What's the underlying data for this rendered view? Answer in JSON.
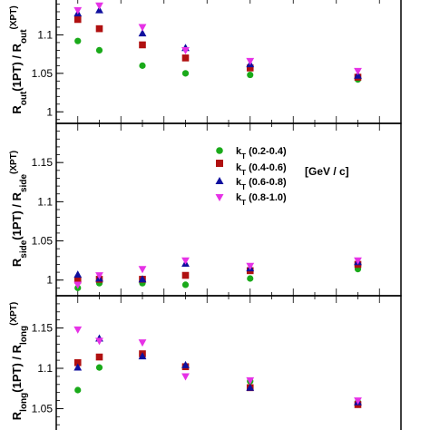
{
  "chart_data": {
    "type": "scatter",
    "x": [
      0.2,
      0.25,
      0.35,
      0.45,
      0.6,
      0.85
    ],
    "legend": {
      "placement": "middle panel, center-right",
      "unit_label": "[GeV / c]"
    },
    "series_style": [
      {
        "color": "#1aaa1a",
        "marker": "circle"
      },
      {
        "color": "#b01010",
        "marker": "square"
      },
      {
        "color": "#10109e",
        "marker": "triangle-up"
      },
      {
        "color": "#e632e6",
        "marker": "triangle-down"
      }
    ],
    "panels": [
      {
        "name": "out",
        "ylabel": "R_out(1PT) / R_out(XPT)",
        "ylim": [
          0.985,
          1.15
        ],
        "yticks": [
          {
            "value": 1,
            "label": "1"
          },
          {
            "value": 1.05,
            "label": "1.05"
          },
          {
            "value": 1.1,
            "label": "1.1"
          },
          {
            "value": 1.15,
            "label": "1.15"
          }
        ],
        "series": [
          {
            "values": [
              1.092,
              1.08,
              1.06,
              1.05,
              1.048,
              1.042
            ]
          },
          {
            "values": [
              1.12,
              1.108,
              1.087,
              1.07,
              1.057,
              1.045
            ]
          },
          {
            "values": [
              1.128,
              1.132,
              1.102,
              1.083,
              1.062,
              1.047
            ]
          },
          {
            "values": [
              1.132,
              1.138,
              1.11,
              1.08,
              1.066,
              1.053
            ]
          }
        ]
      },
      {
        "name": "side",
        "ylabel": "R_side(1PT) / R_side(XPT)",
        "ylim": [
          0.98,
          1.2
        ],
        "yticks": [
          {
            "value": 1,
            "label": "1"
          },
          {
            "value": 1.05,
            "label": "1.05"
          },
          {
            "value": 1.1,
            "label": "1.1"
          },
          {
            "value": 1.15,
            "label": "1.15"
          }
        ],
        "series": [
          {
            "values": [
              0.99,
              0.996,
              0.996,
              0.994,
              1.002,
              1.014
            ]
          },
          {
            "values": [
              1.0,
              1.001,
              1.001,
              1.006,
              1.012,
              1.02
            ]
          },
          {
            "values": [
              1.007,
              1.002,
              1.001,
              1.021,
              1.015,
              1.023
            ]
          },
          {
            "values": [
              0.994,
              1.006,
              1.014,
              1.025,
              1.018,
              1.025
            ]
          }
        ]
      },
      {
        "name": "long",
        "ylabel": "R_long(1PT) / R_long(XPT)",
        "ylim": [
          1.01,
          1.19
        ],
        "yticks": [
          {
            "value": 1.05,
            "label": "1.05"
          },
          {
            "value": 1.1,
            "label": "1.1"
          },
          {
            "value": 1.15,
            "label": "1.15"
          }
        ],
        "series": [
          {
            "values": [
              1.073,
              1.101,
              1.117,
              1.102,
              1.084,
              1.058
            ]
          },
          {
            "values": [
              1.107,
              1.114,
              1.118,
              1.102,
              1.076,
              1.055
            ]
          },
          {
            "values": [
              1.101,
              1.137,
              1.115,
              1.104,
              1.076,
              1.058
            ]
          },
          {
            "values": [
              1.148,
              1.134,
              1.132,
              1.09,
              1.085,
              1.06
            ]
          }
        ]
      }
    ]
  },
  "legend_entries": [
    {
      "sub": "T",
      "range": "(0.2-0.4)"
    },
    {
      "sub": "T",
      "range": "(0.4-0.6)"
    },
    {
      "sub": "T",
      "range": "(0.6-0.8)"
    },
    {
      "sub": "T",
      "range": "(0.8-1.0)"
    }
  ]
}
